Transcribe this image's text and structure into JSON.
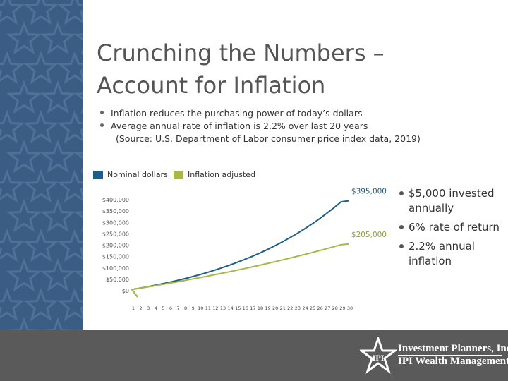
{
  "title": {
    "line1": "Crunching the Numbers –",
    "line2": "Account for Inflation"
  },
  "bullets": [
    "Inflation reduces the purchasing power of today’s dollars",
    "Average annual rate of inflation is 2.2% over last 20 years"
  ],
  "source": "(Source: U.S. Department of Labor consumer price index data, 2019)",
  "side_bullets": [
    "$5,000 invested annually",
    "6% rate of return",
    "2.2% annual inflation"
  ],
  "logo": {
    "line1": "Investment Planners, Inc.",
    "line2": "IPI Wealth Management, Inc.",
    "mark": "IPI"
  },
  "colors": {
    "sidebar": "#3c5d83",
    "footer": "#5a5a5a",
    "nominal": "#1f5f87",
    "inflation": "#a9b748"
  },
  "chart_data": {
    "type": "line",
    "title": "",
    "xlabel": "",
    "ylabel": "",
    "categories": [
      1,
      2,
      3,
      4,
      5,
      6,
      7,
      8,
      9,
      10,
      11,
      12,
      13,
      14,
      15,
      16,
      17,
      18,
      19,
      20,
      21,
      22,
      23,
      24,
      25,
      26,
      27,
      28,
      29,
      30
    ],
    "y_ticks": [
      "$0",
      "$50,000",
      "$100,000",
      "$150,000",
      "$200,000",
      "$250,000",
      "$300,000",
      "$350,000",
      "$400,000"
    ],
    "ylim": [
      0,
      400000
    ],
    "grid": false,
    "legend": "top-left",
    "series": [
      {
        "name": "Nominal dollars",
        "color": "#1f5f87",
        "values": [
          5300,
          10918,
          16873,
          23185,
          29877,
          36969,
          44487,
          52455,
          60903,
          69858,
          79349,
          89410,
          100074,
          111379,
          123361,
          136063,
          149527,
          163798,
          178926,
          194961,
          211959,
          229976,
          249075,
          269320,
          290779,
          313526,
          337637,
          363195,
          390286,
          395000
        ]
      },
      {
        "name": "Inflation adjusted",
        "color": "#a9b748",
        "values": [
          5186,
          10477,
          15873,
          21379,
          26995,
          32725,
          38571,
          44535,
          50619,
          56827,
          63160,
          69621,
          76213,
          82939,
          89800,
          96801,
          103943,
          111230,
          118664,
          126249,
          133986,
          141880,
          149934,
          158151,
          166534,
          175086,
          183812,
          192714,
          201796,
          205000
        ]
      }
    ],
    "annotations": [
      {
        "text": "$395,000",
        "series": "Nominal dollars"
      },
      {
        "text": "$205,000",
        "series": "Inflation adjusted"
      }
    ]
  }
}
